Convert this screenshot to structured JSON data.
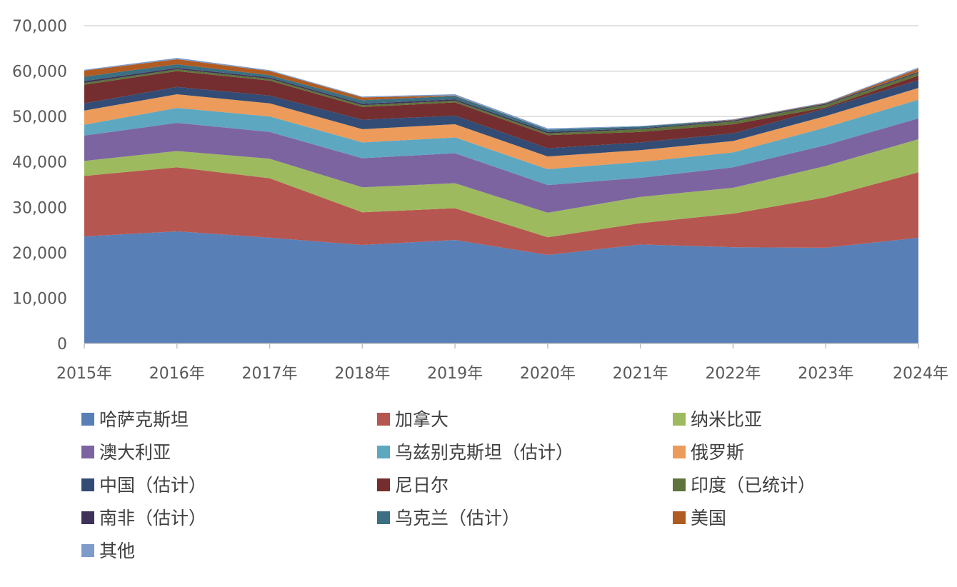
{
  "chart_data": {
    "type": "area",
    "stacked": true,
    "categories": [
      "2015年",
      "2016年",
      "2017年",
      "2018年",
      "2019年",
      "2020年",
      "2021年",
      "2022年",
      "2023年",
      "2024年"
    ],
    "ylim": [
      0,
      70000
    ],
    "yticks": [
      "0",
      "10,000",
      "20,000",
      "30,000",
      "40,000",
      "50,000",
      "60,000",
      "70,000"
    ],
    "ytick_values": [
      0,
      10000,
      20000,
      30000,
      40000,
      50000,
      60000,
      70000
    ],
    "grid": true,
    "legend_position": "bottom",
    "series": [
      {
        "name": "哈萨克斯坦",
        "color": "#587FB6",
        "values": [
          23600,
          24700,
          23300,
          21700,
          22800,
          19500,
          21800,
          21200,
          21100,
          23300
        ]
      },
      {
        "name": "加拿大",
        "color": "#B65650",
        "values": [
          13300,
          14100,
          13100,
          7200,
          7000,
          3900,
          4700,
          7400,
          11100,
          14400
        ]
      },
      {
        "name": "纳米比亚",
        "color": "#9EBA5E",
        "values": [
          3300,
          3600,
          4300,
          5500,
          5500,
          5400,
          5800,
          5700,
          6900,
          7300
        ]
      },
      {
        "name": "澳大利亚",
        "color": "#7C64A1",
        "values": [
          5600,
          6200,
          5900,
          6400,
          6600,
          6100,
          4200,
          4500,
          4600,
          4600
        ]
      },
      {
        "name": "乌兹别克斯坦（估计）",
        "color": "#5EA7C1",
        "values": [
          2400,
          3300,
          3400,
          3500,
          3500,
          3500,
          3500,
          3300,
          3900,
          4100
        ]
      },
      {
        "name": "俄罗斯",
        "color": "#EC9B5A",
        "values": [
          3100,
          3000,
          2900,
          2900,
          2900,
          2800,
          2600,
          2500,
          2500,
          2600
        ]
      },
      {
        "name": "中国（估计）",
        "color": "#324C75",
        "values": [
          1600,
          1600,
          1700,
          2100,
          1900,
          1800,
          1700,
          1700,
          1700,
          1700
        ]
      },
      {
        "name": "尼日尔",
        "color": "#742E2F",
        "values": [
          4100,
          3500,
          3300,
          2800,
          2900,
          2900,
          2300,
          2000,
          200,
          1000
        ]
      },
      {
        "name": "印度（已统计）",
        "color": "#5F733C",
        "values": [
          400,
          400,
          400,
          400,
          400,
          400,
          600,
          600,
          600,
          600
        ]
      },
      {
        "name": "南非（估计）",
        "color": "#3E3258",
        "values": [
          400,
          300,
          300,
          300,
          300,
          300,
          200,
          200,
          200,
          200
        ]
      },
      {
        "name": "乌克兰（估计）",
        "color": "#3B6F81",
        "values": [
          1000,
          800,
          500,
          800,
          700,
          500,
          400,
          100,
          100,
          100
        ]
      },
      {
        "name": "美国",
        "color": "#B05B21",
        "values": [
          1300,
          1100,
          900,
          600,
          100,
          0,
          0,
          100,
          100,
          600
        ]
      },
      {
        "name": "其他",
        "color": "#7E9BCB",
        "values": [
          200,
          300,
          200,
          200,
          300,
          300,
          100,
          100,
          100,
          300
        ]
      }
    ]
  }
}
